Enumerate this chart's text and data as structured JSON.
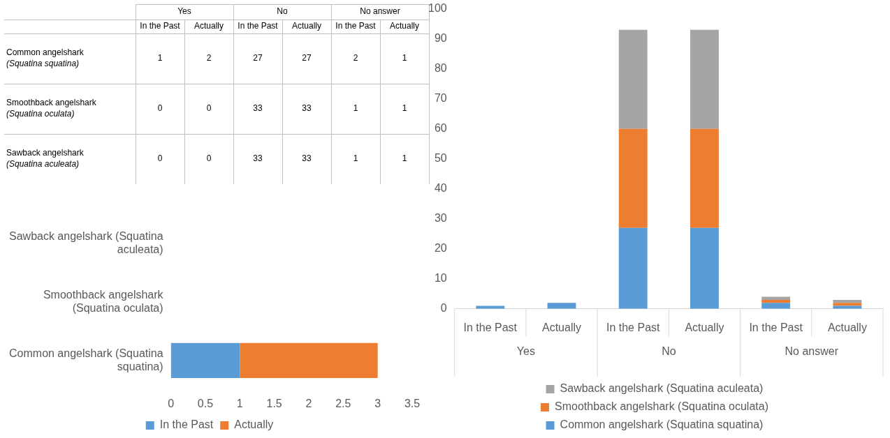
{
  "chart_data": [
    {
      "type": "heatmap",
      "categories": [
        "In the Past",
        "Actually",
        "In the Past",
        "Actually",
        "In the Past",
        "Actually"
      ],
      "annotations": [
        "Yes",
        "No",
        "No answer"
      ],
      "y_categories": [
        "Common angelshark (Squatina squatina)",
        "Smoothback angelshark (Squatina oculata)",
        "Sawback angelshark (Squatina aculeata)"
      ],
      "cells": [
        [
          1,
          2,
          27,
          27,
          2,
          1
        ],
        [
          0,
          0,
          33,
          33,
          1,
          1
        ],
        [
          0,
          0,
          33,
          33,
          1,
          1
        ]
      ],
      "data_labels": true
    },
    {
      "type": "bar",
      "stacked": true,
      "orientation": "horizontal",
      "categories": [
        "Sawback angelshark (Squatina aculeata)",
        "Smoothback angelshark (Squatina oculata)",
        "Common angelshark (Squatina squatina)"
      ],
      "series": [
        {
          "name": "In the Past",
          "color": "#5b9bd5",
          "values": [
            0,
            0,
            1
          ]
        },
        {
          "name": "Actually",
          "color": "#ed7d31",
          "values": [
            0,
            0,
            2
          ]
        }
      ],
      "xlim": [
        0,
        3.5
      ],
      "xticks": [
        0,
        0.5,
        1,
        1.5,
        2,
        2.5,
        3,
        3.5
      ],
      "grid": false,
      "legend": "bottom"
    },
    {
      "type": "bar",
      "stacked": true,
      "categories": [
        "In the Past",
        "Actually",
        "In the Past",
        "Actually",
        "In the Past",
        "Actually"
      ],
      "annotations": [
        "Yes",
        "No",
        "No answer"
      ],
      "series": [
        {
          "name": "Common angelshark (Squatina squatina)",
          "color": "#5b9bd5",
          "values": [
            1,
            2,
            27,
            27,
            2,
            1
          ]
        },
        {
          "name": "Smoothback angelshark (Squatina oculata)",
          "color": "#ed7d31",
          "values": [
            0,
            0,
            33,
            33,
            1,
            1
          ]
        },
        {
          "name": "Sawback angelshark (Squatina aculeata)",
          "color": "#a5a5a5",
          "values": [
            0,
            0,
            33,
            33,
            1,
            1
          ]
        }
      ],
      "ylim": [
        0,
        100
      ],
      "yticks": [
        0,
        10,
        20,
        30,
        40,
        50,
        60,
        70,
        80,
        90,
        100
      ],
      "grid": false,
      "legend": "bottom"
    }
  ]
}
